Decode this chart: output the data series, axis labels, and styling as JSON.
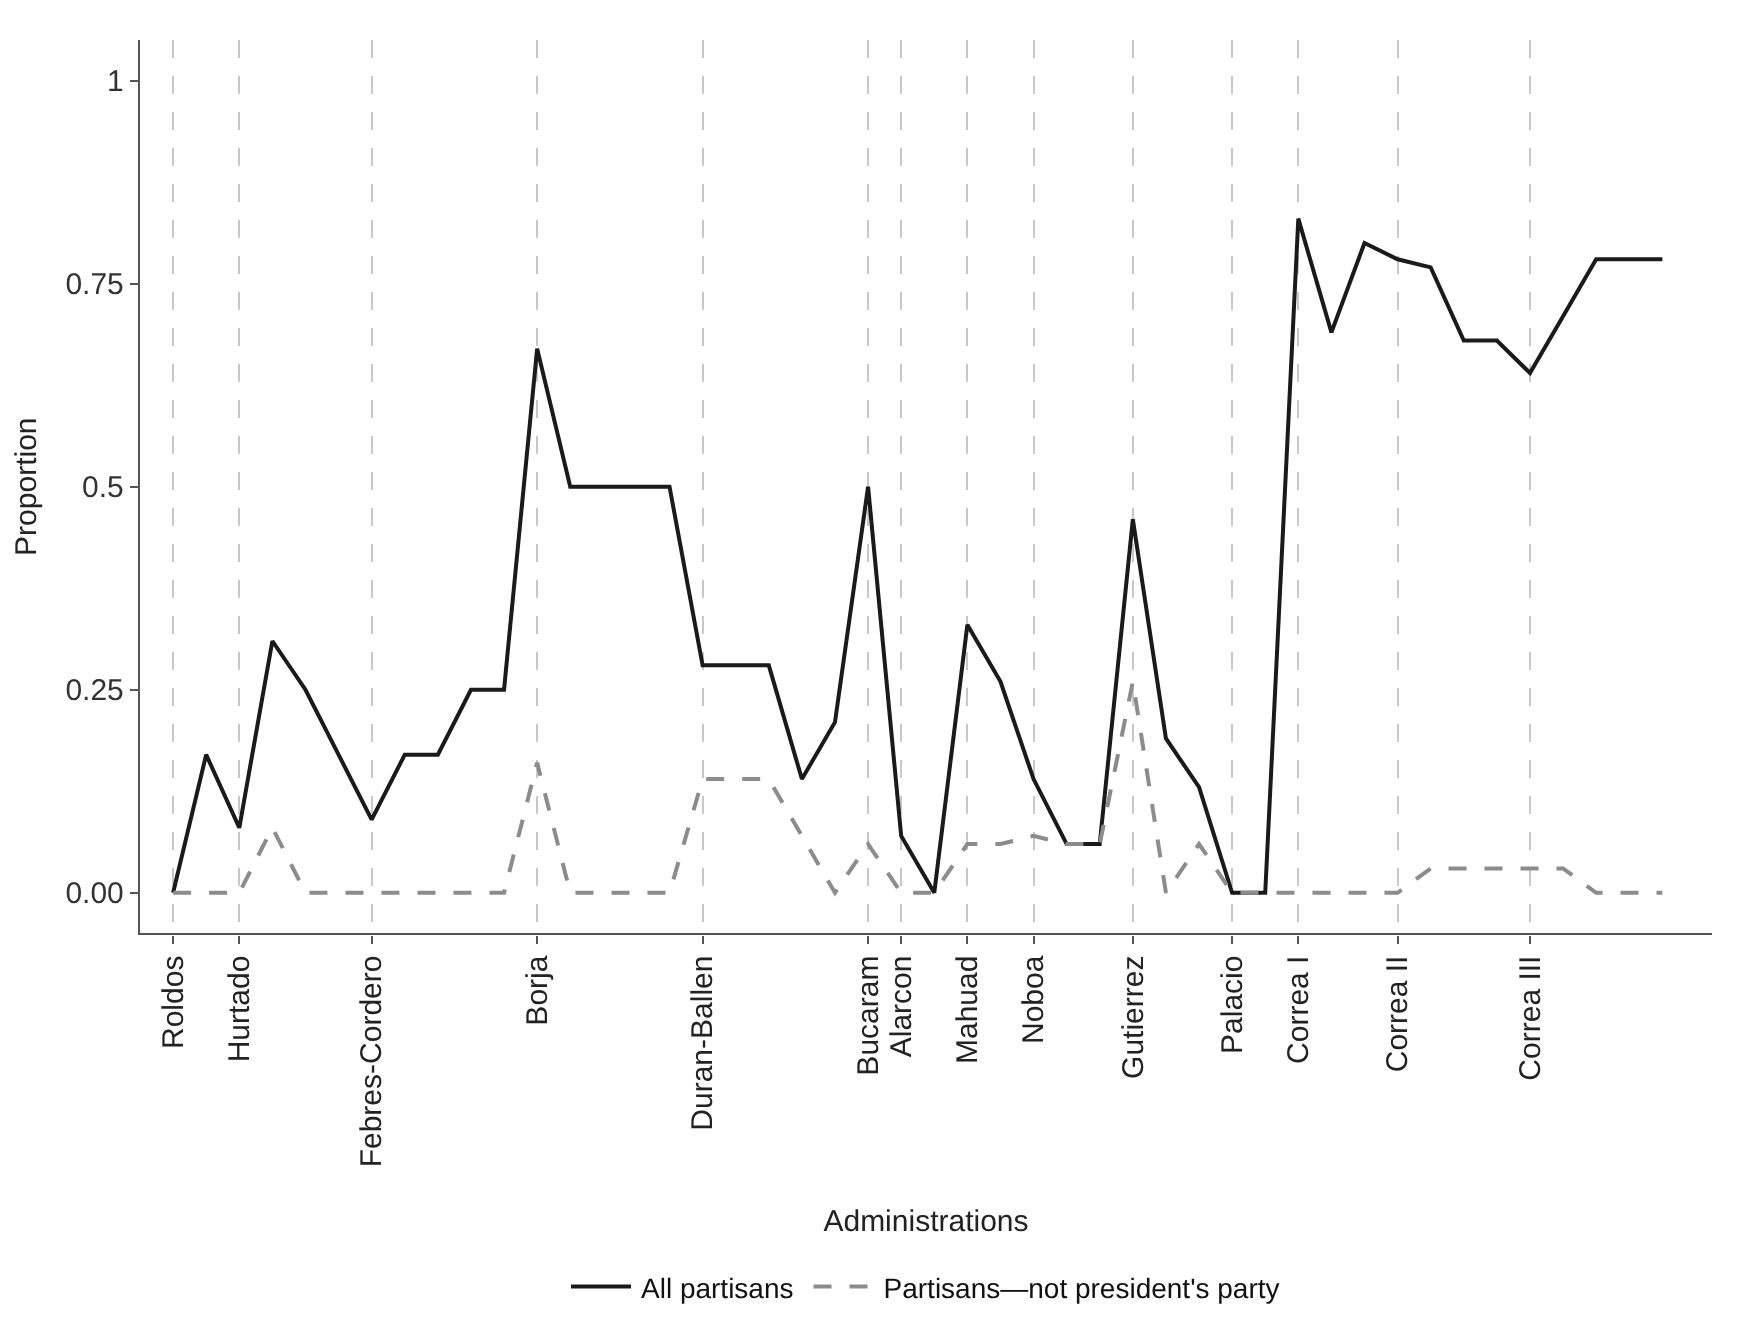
{
  "chart_data": {
    "type": "line",
    "xlabel": "Administrations",
    "ylabel": "Proportion",
    "categories": [
      "Roldos",
      null,
      "Hurtado",
      null,
      null,
      null,
      "Febres-Cordero",
      null,
      null,
      null,
      null,
      "Borja",
      null,
      null,
      null,
      null,
      "Duran-Ballen",
      null,
      null,
      null,
      null,
      "Bucaram",
      "Alarcon",
      null,
      "Mahuad",
      null,
      "Noboa",
      null,
      null,
      "Gutierrez",
      null,
      null,
      "Palacio",
      null,
      "Correa I",
      null,
      null,
      "Correa II",
      null,
      null,
      null,
      "Correa III",
      null,
      null,
      null,
      null
    ],
    "series": [
      {
        "name": "All partisans",
        "color": "#1a1a1a",
        "line_style": "solid",
        "values": [
          0,
          0.17,
          0.08,
          0.31,
          0.25,
          0.17,
          0.09,
          0.17,
          0.17,
          0.25,
          0.25,
          0.67,
          0.5,
          0.5,
          0.5,
          0.5,
          0.28,
          0.28,
          0.28,
          0.14,
          0.21,
          0.5,
          0.07,
          0,
          0.33,
          0.26,
          0.14,
          0.06,
          0.06,
          0.46,
          0.19,
          0.13,
          0,
          0,
          0.83,
          0.69,
          0.8,
          0.78,
          0.77,
          0.68,
          0.68,
          0.64,
          0.71,
          0.78,
          0.78,
          0.78
        ]
      },
      {
        "name": "Partisans—not president's party",
        "color": "#8c8c8c",
        "line_style": "dashed",
        "values": [
          0,
          0,
          0,
          0.08,
          0,
          0,
          0,
          0,
          0,
          0,
          0,
          0.16,
          0,
          0,
          0,
          0,
          0.14,
          0.14,
          0.14,
          0.07,
          0,
          0.06,
          0,
          0,
          0.06,
          0.06,
          0.07,
          0.06,
          0.06,
          0.26,
          0,
          0.06,
          0,
          0,
          0,
          0,
          0,
          0,
          0.03,
          0.03,
          0.03,
          0.03,
          0.03,
          0,
          0,
          0
        ]
      }
    ],
    "ylim": [
      -0.05,
      1.05
    ],
    "yticks": [
      {
        "value": 0,
        "label": "0.00"
      },
      0.25,
      {
        "value": 0.5,
        "label": "0.5"
      },
      0.75,
      {
        "value": 1,
        "label": "1"
      }
    ],
    "grid": "x",
    "legend": "bottom",
    "marker": "none"
  }
}
